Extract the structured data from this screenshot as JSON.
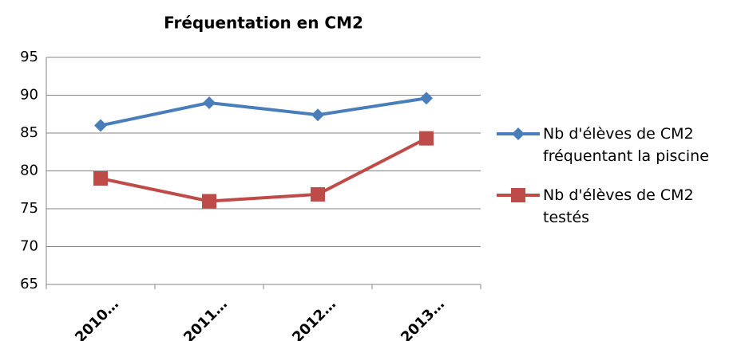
{
  "chart_data": {
    "type": "line",
    "title": "Fréquentation en CM2",
    "categories": [
      "2010…",
      "2011…",
      "2012…",
      "2013…"
    ],
    "series": [
      {
        "name": "Nb d'élèves de CM2 fréquentant la piscine",
        "color": "#4a7ebb",
        "marker": "diamond",
        "values": [
          86,
          89,
          87.4,
          89.6
        ]
      },
      {
        "name": "Nb d'élèves de CM2 testés",
        "color": "#be4b48",
        "marker": "square",
        "values": [
          79,
          76,
          76.9,
          84.3
        ]
      }
    ],
    "ylim": [
      65,
      95
    ],
    "yticks": [
      65,
      70,
      75,
      80,
      85,
      90,
      95
    ],
    "grid": true,
    "legend": "right"
  }
}
